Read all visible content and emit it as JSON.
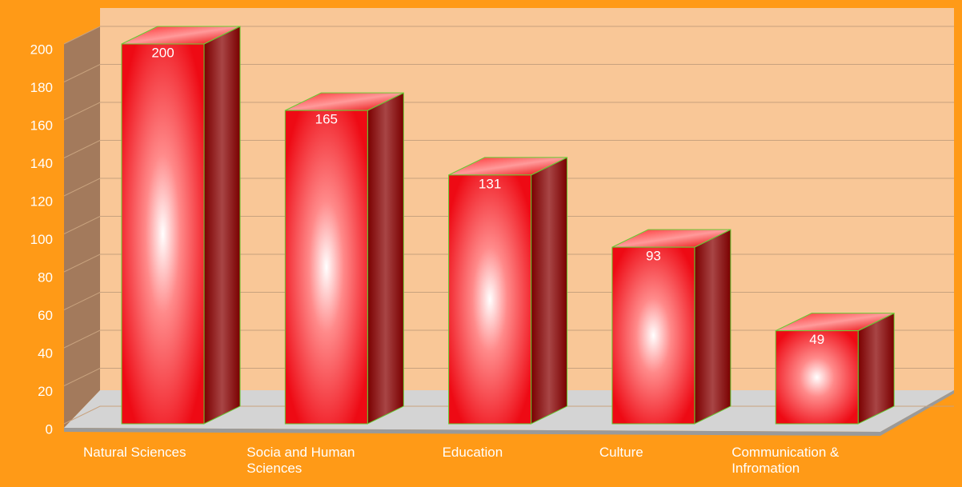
{
  "chart_data": {
    "type": "bar3d",
    "categories": [
      "Natural Sciences",
      "Socia and Human Sciences",
      "Education",
      "Culture",
      "Communication & Infromation"
    ],
    "values": [
      200,
      165,
      131,
      93,
      49
    ],
    "color": "#ee0a14",
    "ylim": [
      0,
      200
    ],
    "yticks": [
      0,
      20,
      40,
      60,
      80,
      100,
      120,
      140,
      160,
      180,
      200
    ],
    "grid": true
  }
}
